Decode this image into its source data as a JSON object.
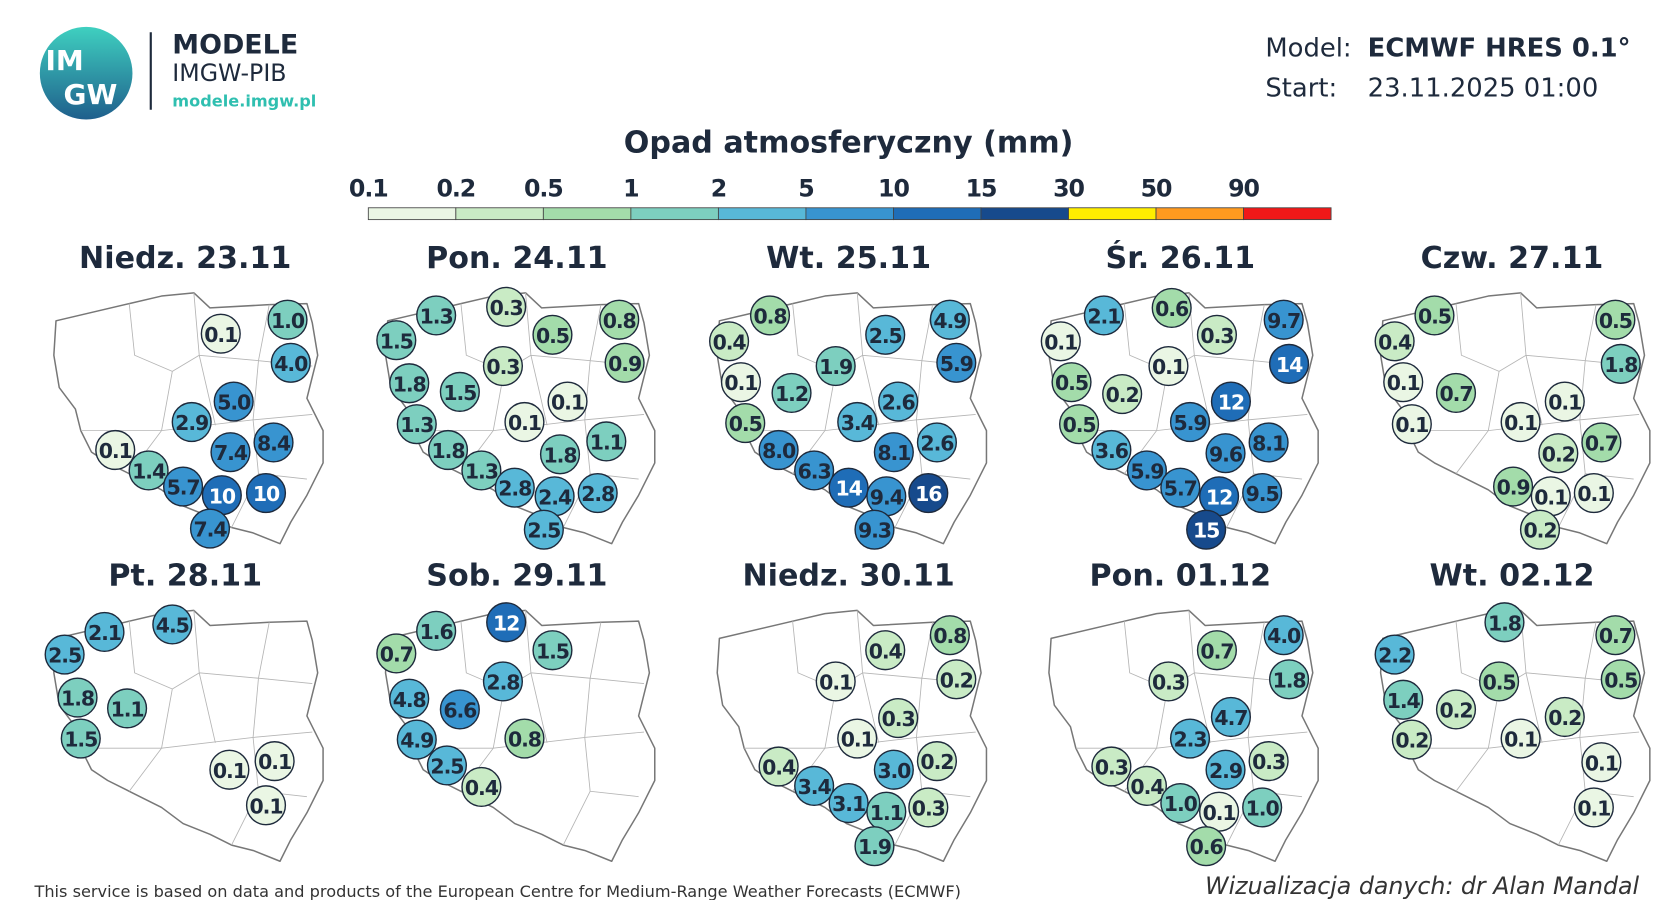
{
  "header": {
    "logo_top": "IM",
    "logo_bottom": "GW",
    "brand": "MODELE",
    "org": "IMGW-PIB",
    "url": "modele.imgw.pl",
    "model_label": "Model:",
    "model_value": "ECMWF HRES 0.1°",
    "start_label": "Start:",
    "start_value": "23.11.2025 01:00"
  },
  "legend": {
    "title": "Opad atmosferyczny (mm)",
    "levels": [
      {
        "label": "0.1",
        "color": "#eaf6e4"
      },
      {
        "label": "0.2",
        "color": "#c9ebc5"
      },
      {
        "label": "0.5",
        "color": "#a3dcaa"
      },
      {
        "label": "1",
        "color": "#7dcfbf"
      },
      {
        "label": "2",
        "color": "#58b8d8"
      },
      {
        "label": "5",
        "color": "#3894d0"
      },
      {
        "label": "10",
        "color": "#1f6db7"
      },
      {
        "label": "15",
        "color": "#174a8c"
      },
      {
        "label": "30",
        "color": "#ffee00"
      },
      {
        "label": "50",
        "color": "#ff9a1f"
      },
      {
        "label": "90",
        "color": "#f01818"
      }
    ]
  },
  "panels": [
    {
      "title": "Niedz. 23.11",
      "bubbles": [
        "0.1",
        "1.0",
        "4.0",
        "5.0",
        "2.9",
        "7.4",
        "8.4",
        "0.1",
        "1.4",
        "5.7",
        "10",
        "10",
        "7.4"
      ]
    },
    {
      "title": "Pon. 24.11",
      "bubbles": [
        "1.3",
        "0.3",
        "1.5",
        "0.5",
        "0.8",
        "0.3",
        "0.9",
        "1.8",
        "1.5",
        "0.1",
        "0.1",
        "1.3",
        "1.8",
        "1.1",
        "1.8",
        "1.3",
        "2.8",
        "2.4",
        "2.8",
        "2.5"
      ]
    },
    {
      "title": "Wt. 25.11",
      "bubbles": [
        "0.8",
        "0.4",
        "2.5",
        "4.9",
        "1.9",
        "5.9",
        "0.1",
        "1.2",
        "2.6",
        "3.4",
        "0.5",
        "8.0",
        "8.1",
        "2.6",
        "6.3",
        "14",
        "9.4",
        "16",
        "9.3"
      ]
    },
    {
      "title": "Śr. 26.11",
      "bubbles": [
        "2.1",
        "0.6",
        "9.7",
        "0.1",
        "0.3",
        "14",
        "0.1",
        "0.5",
        "0.2",
        "12",
        "5.9",
        "0.5",
        "3.6",
        "9.6",
        "8.1",
        "5.9",
        "5.7",
        "12",
        "9.5",
        "15"
      ]
    },
    {
      "title": "Czw. 27.11",
      "bubbles": [
        "0.5",
        "0.5",
        "0.4",
        "1.8",
        "0.1",
        "0.7",
        "0.1",
        "0.1",
        "0.1",
        "0.2",
        "0.7",
        "0.9",
        "0.1",
        "0.1",
        "0.2"
      ]
    },
    {
      "title": "Pt. 28.11",
      "bubbles": [
        "4.5",
        "2.1",
        "2.5",
        "1.8",
        "1.1",
        "1.5",
        "0.1",
        "0.1",
        "0.1"
      ]
    },
    {
      "title": "Sob. 29.11",
      "bubbles": [
        "12",
        "1.6",
        "0.7",
        "1.5",
        "2.8",
        "4.8",
        "6.6",
        "0.8",
        "4.9",
        "2.5",
        "0.4"
      ]
    },
    {
      "title": "Niedz. 30.11",
      "bubbles": [
        "0.4",
        "0.8",
        "0.2",
        "0.1",
        "0.3",
        "0.1",
        "0.4",
        "3.0",
        "0.2",
        "3.4",
        "3.1",
        "1.1",
        "0.3",
        "1.9"
      ]
    },
    {
      "title": "Pon. 01.12",
      "bubbles": [
        "0.7",
        "4.0",
        "1.8",
        "0.3",
        "4.7",
        "2.3",
        "2.9",
        "0.3",
        "0.3",
        "0.4",
        "1.0",
        "0.1",
        "1.0",
        "0.6"
      ]
    },
    {
      "title": "Wt. 02.12",
      "bubbles": [
        "1.8",
        "0.7",
        "2.2",
        "0.5",
        "1.4",
        "0.5",
        "0.2",
        "0.2",
        "0.2",
        "0.1",
        "0.1",
        "0.1"
      ]
    }
  ],
  "footer": {
    "source": "This service is based on data and products of the European Centre for Medium-Range Weather Forecasts (ECMWF)",
    "credit": "Wizualizacja danych: dr Alan Mandal"
  }
}
